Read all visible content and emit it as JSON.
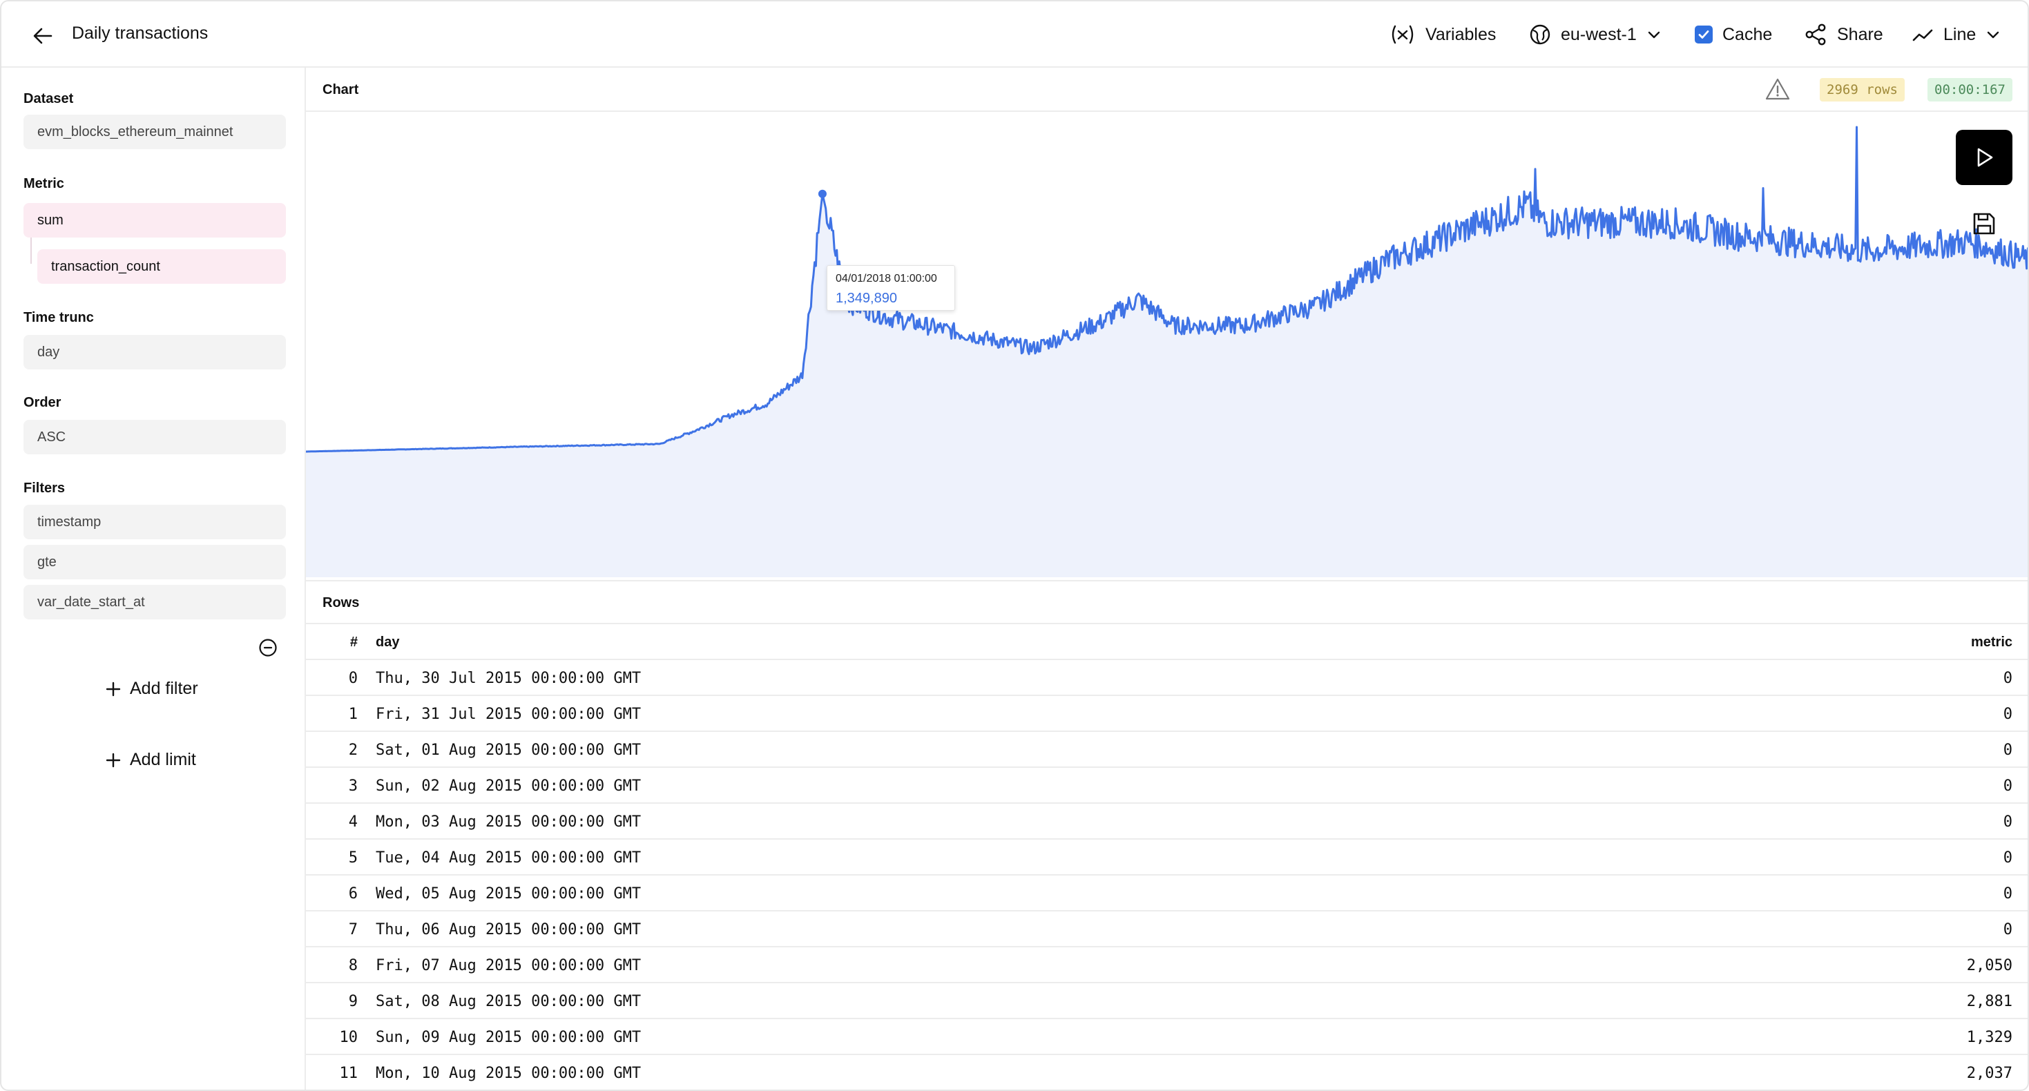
{
  "header": {
    "title": "Daily transactions",
    "variables_label": "Variables",
    "region_label": "eu-west-1",
    "cache_label": "Cache",
    "cache_checked": true,
    "share_label": "Share",
    "chart_type_label": "Line"
  },
  "sidebar": {
    "dataset_label": "Dataset",
    "dataset_value": "evm_blocks_ethereum_mainnet",
    "metric_label": "Metric",
    "metric_fn": "sum",
    "metric_column": "transaction_count",
    "time_trunc_label": "Time trunc",
    "time_trunc_value": "day",
    "order_label": "Order",
    "order_value": "ASC",
    "filters_label": "Filters",
    "filter_column": "timestamp",
    "filter_operator": "gte",
    "filter_value": "var_date_start_at",
    "add_filter_label": "Add filter",
    "add_limit_label": "Add limit"
  },
  "chart_panel": {
    "title": "Chart",
    "rows_badge": "2969 rows",
    "time_badge": "00:00:167",
    "tooltip_date": "04/01/2018 01:00:00",
    "tooltip_value": "1,349,890",
    "accent": "#3f73e5",
    "fill": "#eef2fc"
  },
  "chart_data": {
    "type": "area",
    "title": "",
    "xlabel": "",
    "ylabel": "",
    "x_range": [
      "2015-07-30",
      "2023-09-14"
    ],
    "series": [
      {
        "anchors": [
          [
            "2015-07-30",
            0
          ],
          [
            "2016-07-30",
            25000
          ],
          [
            "2017-03-30",
            40000
          ],
          [
            "2017-05-30",
            110000
          ],
          [
            "2017-07-30",
            190000
          ],
          [
            "2017-09-30",
            250000
          ],
          [
            "2017-11-30",
            400000
          ],
          [
            "2018-01-04",
            1349890
          ],
          [
            "2018-02-15",
            780000
          ],
          [
            "2018-05-01",
            700000
          ],
          [
            "2018-09-01",
            620000
          ],
          [
            "2019-01-01",
            540000
          ],
          [
            "2019-05-01",
            680000
          ],
          [
            "2019-07-01",
            800000
          ],
          [
            "2019-09-01",
            660000
          ],
          [
            "2020-01-01",
            660000
          ],
          [
            "2020-05-01",
            760000
          ],
          [
            "2020-09-01",
            1000000
          ],
          [
            "2021-01-01",
            1150000
          ],
          [
            "2021-05-01",
            1290000
          ],
          [
            "2021-06-01",
            1200000
          ],
          [
            "2022-01-01",
            1200000
          ],
          [
            "2022-05-01",
            1130000
          ],
          [
            "2022-12-01",
            1050000
          ],
          [
            "2023-06-01",
            1100000
          ],
          [
            "2023-09-14",
            1000000
          ]
        ]
      }
    ],
    "y_range": [
      0,
      1700000
    ]
  },
  "rows_panel": {
    "title": "Rows",
    "columns": [
      "#",
      "day",
      "metric"
    ],
    "rows": [
      [
        "0",
        "Thu, 30 Jul 2015 00:00:00 GMT",
        "0"
      ],
      [
        "1",
        "Fri, 31 Jul 2015 00:00:00 GMT",
        "0"
      ],
      [
        "2",
        "Sat, 01 Aug 2015 00:00:00 GMT",
        "0"
      ],
      [
        "3",
        "Sun, 02 Aug 2015 00:00:00 GMT",
        "0"
      ],
      [
        "4",
        "Mon, 03 Aug 2015 00:00:00 GMT",
        "0"
      ],
      [
        "5",
        "Tue, 04 Aug 2015 00:00:00 GMT",
        "0"
      ],
      [
        "6",
        "Wed, 05 Aug 2015 00:00:00 GMT",
        "0"
      ],
      [
        "7",
        "Thu, 06 Aug 2015 00:00:00 GMT",
        "0"
      ],
      [
        "8",
        "Fri, 07 Aug 2015 00:00:00 GMT",
        "2,050"
      ],
      [
        "9",
        "Sat, 08 Aug 2015 00:00:00 GMT",
        "2,881"
      ],
      [
        "10",
        "Sun, 09 Aug 2015 00:00:00 GMT",
        "1,329"
      ],
      [
        "11",
        "Mon, 10 Aug 2015 00:00:00 GMT",
        "2,037"
      ]
    ]
  }
}
